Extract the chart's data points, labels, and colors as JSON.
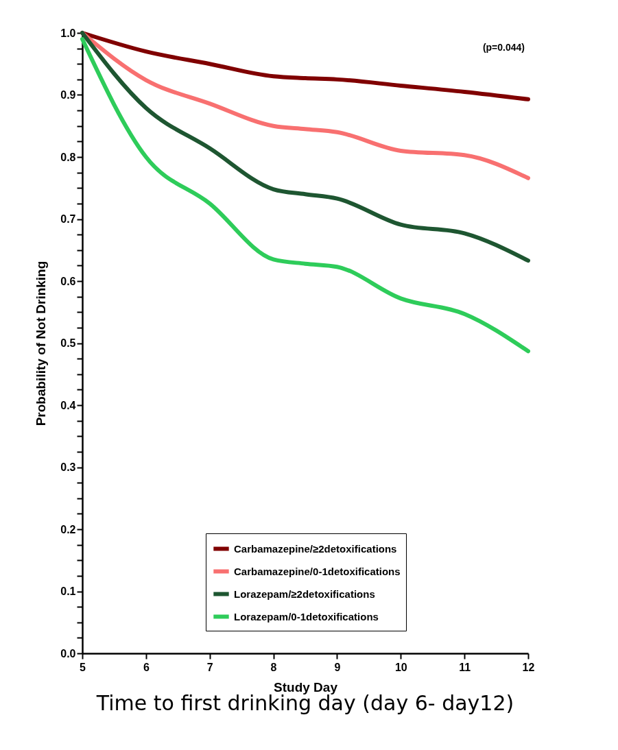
{
  "chart_data": {
    "type": "line",
    "xlabel": "Study Day",
    "ylabel": "Probability of Not Drinking",
    "x": [
      5,
      6,
      7,
      8,
      8.5,
      9,
      10,
      11,
      12
    ],
    "series": [
      {
        "name": "Carbamazepine/≥2detoxifications",
        "color": "#800000",
        "values": [
          1.0,
          0.97,
          0.95,
          0.93,
          0.927,
          0.925,
          0.915,
          0.905,
          0.893
        ]
      },
      {
        "name": "Carbamazepine/0-1detoxifications",
        "color": "#f87070",
        "values": [
          1.0,
          0.924,
          0.886,
          0.85,
          0.845,
          0.84,
          0.81,
          0.803,
          0.766
        ]
      },
      {
        "name": "Lorazepam/≥2detoxifications",
        "color": "#1e5631",
        "values": [
          1.0,
          0.879,
          0.814,
          0.748,
          0.74,
          0.733,
          0.691,
          0.677,
          0.633
        ]
      },
      {
        "name": "Lorazepam/0-1detoxifications",
        "color": "#2ecc5a",
        "values": [
          0.99,
          0.8,
          0.725,
          0.635,
          0.628,
          0.623,
          0.572,
          0.547,
          0.487
        ]
      }
    ],
    "xlim": [
      5,
      12
    ],
    "xticks": [
      5,
      6,
      7,
      8,
      9,
      10,
      11,
      12
    ],
    "ylim": [
      0,
      1
    ],
    "yticks": [
      {
        "value": 0,
        "label": "0.0"
      },
      {
        "value": 0.025,
        "label": null
      },
      {
        "value": 0.05,
        "label": null
      },
      {
        "value": 0.075,
        "label": null
      },
      0.1,
      {
        "value": 0.125,
        "label": null
      },
      {
        "value": 0.15,
        "label": null
      },
      {
        "value": 0.175,
        "label": null
      },
      0.2,
      {
        "value": 0.225,
        "label": null
      },
      {
        "value": 0.25,
        "label": null
      },
      {
        "value": 0.275,
        "label": null
      },
      0.3,
      {
        "value": 0.325,
        "label": null
      },
      {
        "value": 0.35,
        "label": null
      },
      {
        "value": 0.375,
        "label": null
      },
      0.4,
      {
        "value": 0.425,
        "label": null
      },
      {
        "value": 0.45,
        "label": null
      },
      {
        "value": 0.475,
        "label": null
      },
      0.5,
      {
        "value": 0.525,
        "label": null
      },
      {
        "value": 0.55,
        "label": null
      },
      {
        "value": 0.575,
        "label": null
      },
      0.6,
      {
        "value": 0.625,
        "label": null
      },
      {
        "value": 0.65,
        "label": null
      },
      {
        "value": 0.675,
        "label": null
      },
      0.7,
      {
        "value": 0.725,
        "label": null
      },
      {
        "value": 0.75,
        "label": null
      },
      {
        "value": 0.775,
        "label": null
      },
      0.8,
      {
        "value": 0.825,
        "label": null
      },
      {
        "value": 0.85,
        "label": null
      },
      {
        "value": 0.875,
        "label": null
      },
      0.9,
      {
        "value": 0.925,
        "label": null
      },
      {
        "value": 0.95,
        "label": null
      },
      {
        "value": 0.975,
        "label": null
      },
      {
        "value": 1,
        "label": "1.0"
      }
    ],
    "legend": "bottom right",
    "line_style": "solid",
    "annotations": [
      "(p=0.044)",
      "Time to first drinking day (day 6- day12)"
    ]
  }
}
